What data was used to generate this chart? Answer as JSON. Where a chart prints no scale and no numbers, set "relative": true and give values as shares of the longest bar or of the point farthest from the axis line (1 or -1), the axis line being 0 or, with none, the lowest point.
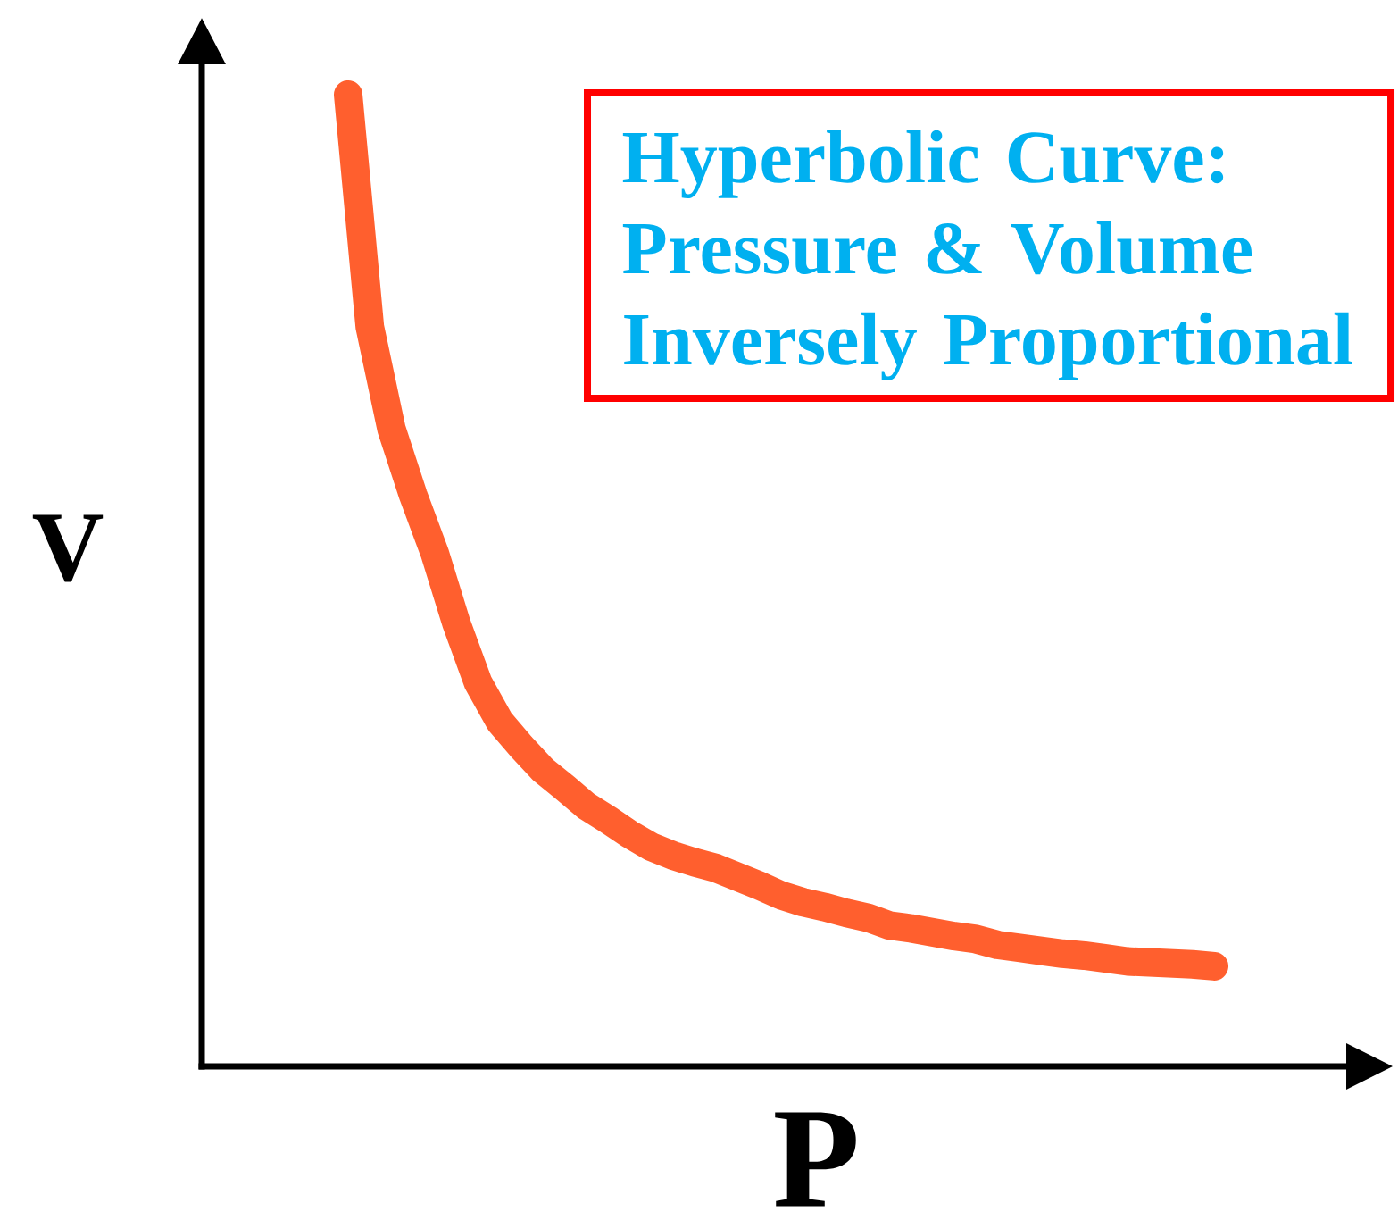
{
  "chart_data": {
    "type": "line",
    "title": "Hyperbolic Curve: Pressure & Volume Inversely Proportional",
    "xlabel": "P",
    "ylabel": "V",
    "relative": true,
    "categories": [
      null,
      null,
      null,
      null,
      null,
      null,
      null,
      null,
      null,
      null,
      null,
      null,
      null,
      null,
      null,
      null,
      null,
      null,
      null,
      null,
      null,
      null,
      null,
      null,
      null,
      null,
      null,
      null,
      null,
      null,
      null,
      null,
      null,
      null,
      null,
      null,
      null,
      null,
      null,
      null,
      null
    ],
    "series": [
      {
        "color": "#ff5f2e",
        "values": [
          1.0,
          0.761,
          0.656,
          0.588,
          0.528,
          0.456,
          0.395,
          0.355,
          0.329,
          0.305,
          0.287,
          0.268,
          0.254,
          0.239,
          0.226,
          0.217,
          0.21,
          0.204,
          0.195,
          0.186,
          0.176,
          0.169,
          0.164,
          0.158,
          0.153,
          0.145,
          0.142,
          0.138,
          0.134,
          0.131,
          0.125,
          0.122,
          0.119,
          0.116,
          0.114,
          0.111,
          0.108,
          0.107,
          0.106,
          0.105,
          0.103
        ]
      }
    ]
  }
}
